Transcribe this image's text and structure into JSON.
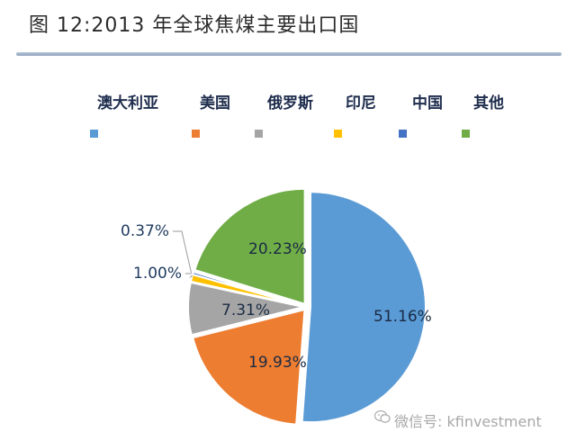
{
  "figure_title": "图 12:2013 年全球焦煤主要出口国",
  "watermark": "微信号: kfinvestment",
  "chart_data": {
    "type": "pie",
    "title": "",
    "legend_position": "top",
    "slices": [
      {
        "name": "澳大利亚",
        "value": 51.16,
        "label": "51.16%",
        "color": "#5b9bd5"
      },
      {
        "name": "美国",
        "value": 19.93,
        "label": "19.93%",
        "color": "#ed7d31"
      },
      {
        "name": "俄罗斯",
        "value": 7.31,
        "label": "7.31%",
        "color": "#a5a5a5"
      },
      {
        "name": "印尼",
        "value": 1.0,
        "label": "1.00%",
        "color": "#ffc000"
      },
      {
        "name": "中国",
        "value": 0.37,
        "label": "0.37%",
        "color": "#4472c4"
      },
      {
        "name": "其他",
        "value": 20.23,
        "label": "20.23%",
        "color": "#70ad47"
      }
    ]
  }
}
